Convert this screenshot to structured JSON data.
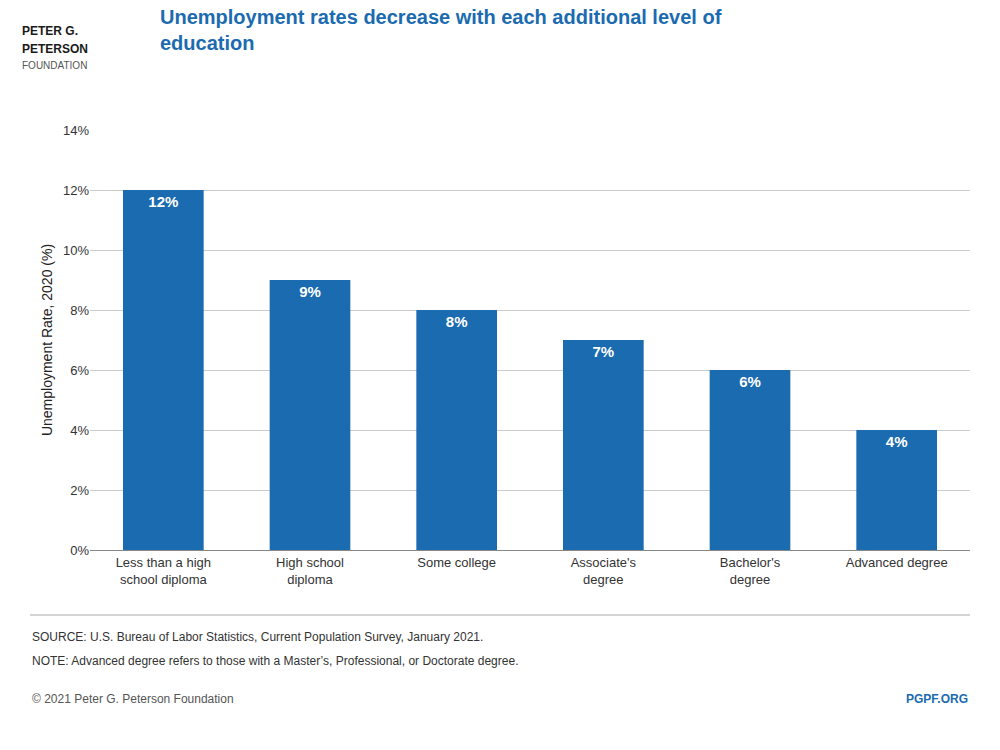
{
  "chart_data": {
    "type": "bar",
    "title": "Unemployment rates decrease with each additional level of\neducation",
    "ylabel": "Unemployment Rate, 2020 (%)",
    "categories": [
      "Less than a high\nschool diploma",
      "High school\ndiploma",
      "Some college",
      "Associate's\ndegree",
      "Bachelor's\ndegree",
      "Advanced degree"
    ],
    "values": [
      12,
      9,
      8,
      7,
      6,
      4
    ],
    "value_labels": [
      "12%",
      "9%",
      "8%",
      "7%",
      "6%",
      "4%"
    ],
    "data_labels": true,
    "color": "#1B6BB0",
    "ylim": [
      0,
      14
    ],
    "yticks": [
      {
        "value": 0,
        "label": "0%"
      },
      {
        "value": 2,
        "label": "2%"
      },
      {
        "value": 4,
        "label": "4%"
      },
      {
        "value": 6,
        "label": "6%"
      },
      {
        "value": 8,
        "label": "8%"
      },
      {
        "value": 10,
        "label": "10%"
      },
      {
        "value": 12,
        "label": "12%"
      },
      {
        "value": 14,
        "label": "14%"
      }
    ],
    "grid": true,
    "annotations": [
      "PETER G.",
      "PETERSON",
      "FOUNDATION",
      "SOURCE: U.S. Bureau of Labor Statistics, Current Population Survey, January 2021.",
      "NOTE: Advanced degree refers to those with a Master’s, Professional, or Doctorate degree.",
      "© 2021 Peter G. Peterson Foundation",
      "PGPF.ORG"
    ]
  }
}
